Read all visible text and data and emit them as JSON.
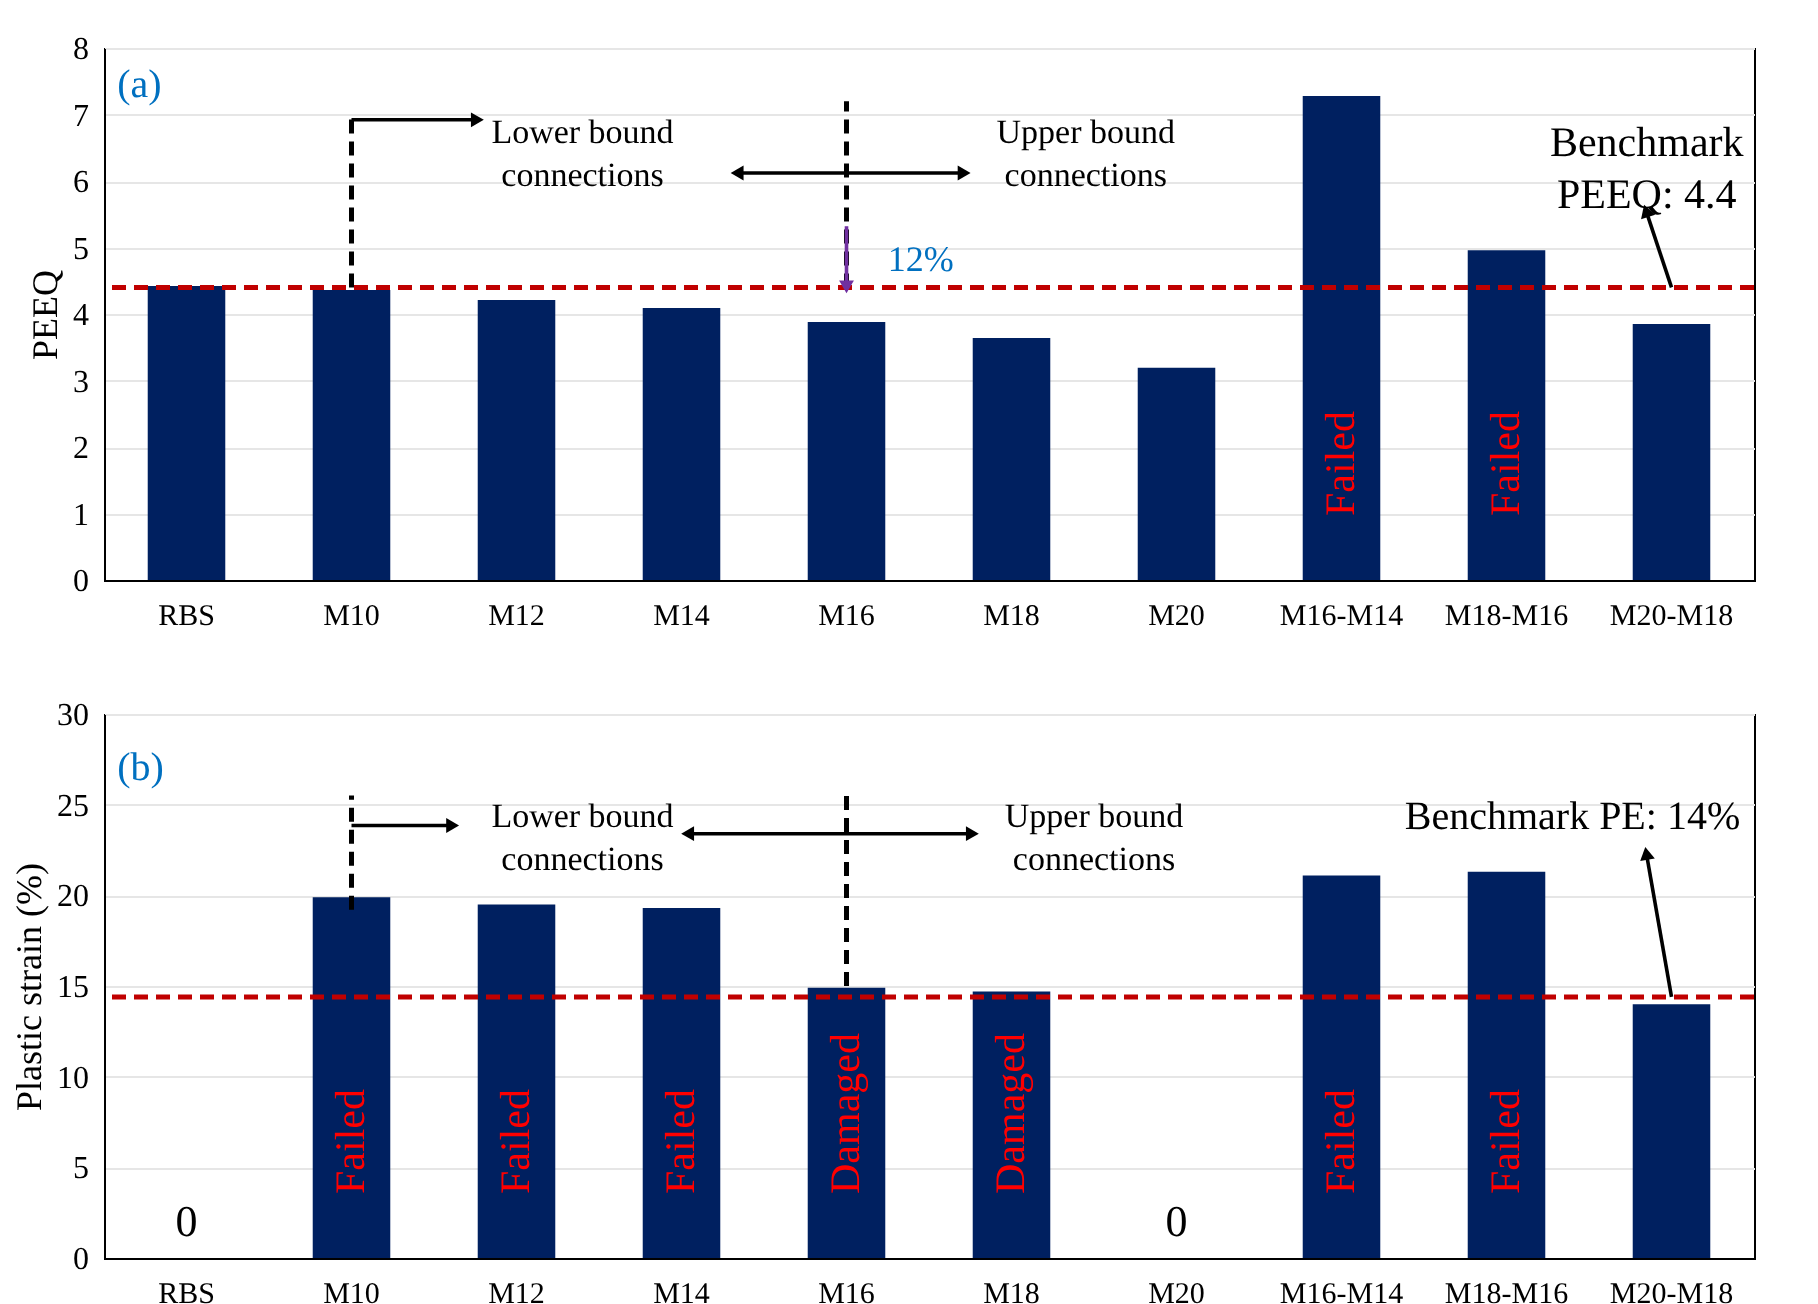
{
  "chart_data": [
    {
      "type": "bar",
      "categories": [
        "RBS",
        "M10",
        "M12",
        "M14",
        "M16",
        "M18",
        "M20",
        "M16-M14",
        "M18-M16",
        "M20-M18"
      ],
      "values": [
        4.42,
        4.36,
        4.21,
        4.09,
        3.88,
        3.64,
        3.19,
        7.28,
        4.96,
        3.85
      ],
      "color": "#002060",
      "ylabel": "PEEQ",
      "ylim": [
        0,
        8
      ],
      "yticks": [
        0,
        1,
        2,
        3,
        4,
        5,
        6,
        7,
        8
      ],
      "grid": "y",
      "value_labels": [
        null,
        null,
        null,
        null,
        null,
        null,
        null,
        "Failed",
        "Failed",
        null
      ],
      "ref_lines": [
        {
          "axis": "y",
          "value": 4.4,
          "color": "#c00000",
          "line_style": "dashed"
        }
      ],
      "annotations": [
        "(a)",
        "Lower bound\nconnections",
        "Upper bound\nconnections",
        "12%",
        {
          "text": "Benchmark\nPEEQ: 4.4",
          "x": "M20-M18",
          "y": 4.4
        }
      ]
    },
    {
      "type": "bar",
      "categories": [
        "RBS",
        "M10",
        "M12",
        "M14",
        "M16",
        "M18",
        "M20",
        "M16-M14",
        "M18-M16",
        "M20-M18"
      ],
      "values": [
        0,
        19.9,
        19.5,
        19.3,
        14.9,
        14.7,
        0,
        21.1,
        21.3,
        14.0
      ],
      "color": "#002060",
      "ylabel": "Plastic strain (%)",
      "ylim": [
        0,
        30
      ],
      "yticks": [
        0,
        5,
        10,
        15,
        20,
        25,
        30
      ],
      "grid": "y",
      "value_labels": [
        "0",
        "Failed",
        "Failed",
        "Failed",
        "Damaged",
        "Damaged",
        "0",
        "Failed",
        "Failed",
        null
      ],
      "ref_lines": [
        {
          "axis": "y",
          "value": 14.4,
          "color": "#c00000",
          "line_style": "dashed"
        }
      ],
      "annotations": [
        "(b)",
        "Lower bound\nconnections",
        "Upper bound\nconnections",
        {
          "text": "Benchmark PE: 14%",
          "x": "M20-M18",
          "y": 14.4
        }
      ]
    }
  ]
}
